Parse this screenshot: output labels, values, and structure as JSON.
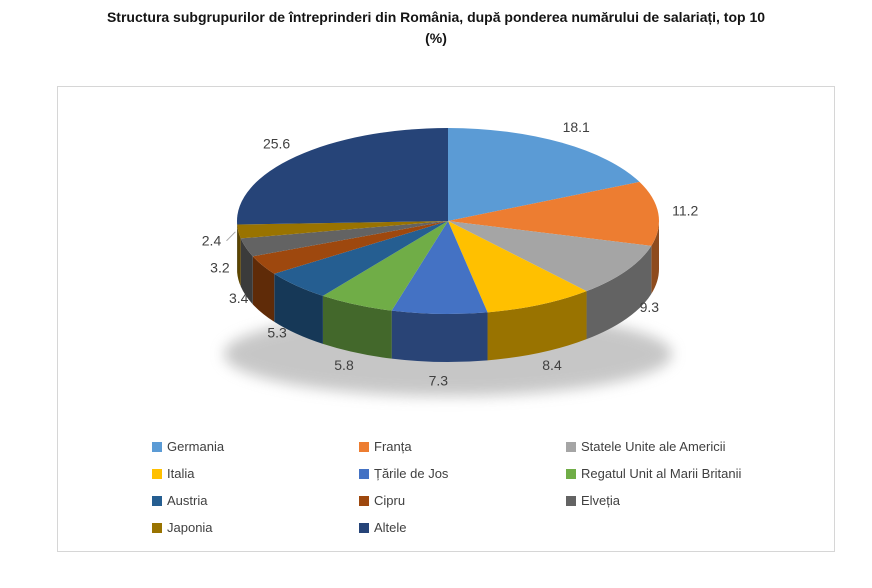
{
  "title": {
    "lines": [
      "Structura subgrupurilor de întreprinderi din România, după ponderea numărului de salariați, top 10",
      "(%)"
    ]
  },
  "chart_data": {
    "type": "pie",
    "style": "3d-pie",
    "start_angle_deg": 0,
    "direction": "clockwise",
    "unit": "%",
    "legend_position": "bottom",
    "data_labels_shown": true,
    "categories": [
      "Germania",
      "Franța",
      "Statele Unite ale Americii",
      "Italia",
      "Țările de Jos",
      "Regatul Unit al Marii Britanii",
      "Austria",
      "Cipru",
      "Elveția",
      "Japonia",
      "Altele"
    ],
    "values": [
      18.1,
      11.2,
      9.3,
      8.4,
      7.3,
      5.8,
      5.3,
      3.4,
      3.2,
      2.4,
      25.6
    ],
    "data_labels": [
      "18.1",
      "11.2",
      "9.3",
      "8.4",
      "7.3",
      "5.8",
      "5.3",
      "3.4",
      "3.2",
      "2.4",
      "25.6"
    ],
    "colors": [
      "#5B9BD5",
      "#ED7D31",
      "#A5A5A5",
      "#FFC000",
      "#4472C4",
      "#70AD47",
      "#255E91",
      "#9E480E",
      "#636363",
      "#997300",
      "#264478"
    ],
    "label_text_color": "#404040",
    "legend_text_color": "#404040"
  }
}
